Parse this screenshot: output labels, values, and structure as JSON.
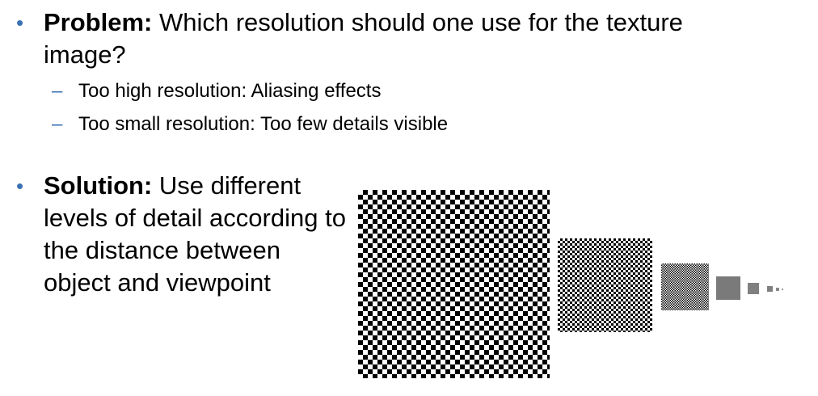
{
  "problem": {
    "label": "Problem:",
    "text": " Which resolution should one use for the texture image?",
    "sub_items": [
      {
        "text": "Too high resolution: Aliasing effects"
      },
      {
        "text": "Too small resolution: Too few details visible"
      }
    ]
  },
  "solution": {
    "label": "Solution:",
    "text": " Use different levels of detail according to the distance between object and viewpoint"
  },
  "colors": {
    "bullet": "#3a72b6",
    "text": "#000000",
    "checker_dark": "#000000",
    "checker_light": "#ffffff"
  }
}
